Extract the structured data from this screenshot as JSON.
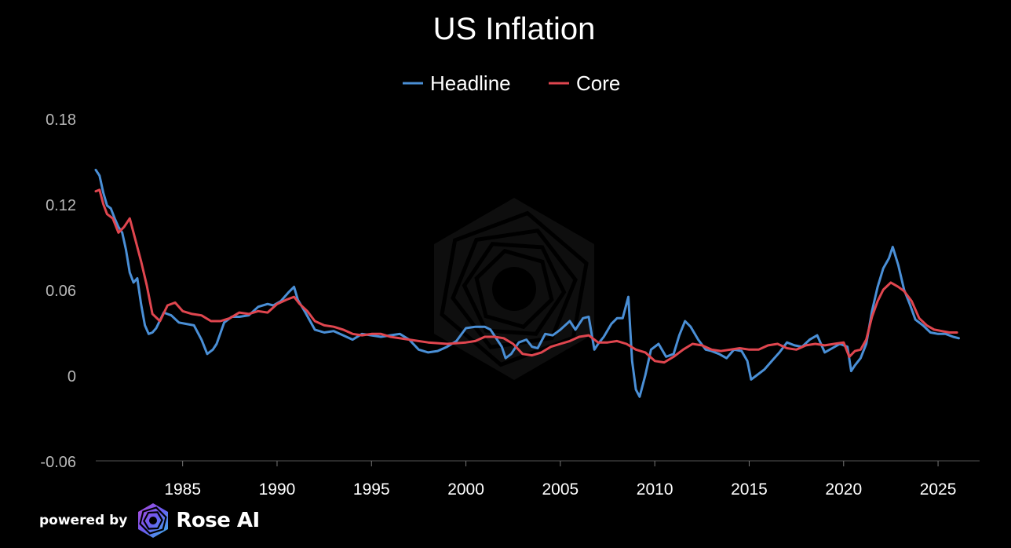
{
  "chart_data": {
    "type": "line",
    "title": "US Inflation",
    "xlabel": "",
    "ylabel": "",
    "legend_position": "top-center",
    "grid": false,
    "xlim": [
      1980.4,
      2027.2
    ],
    "ylim": [
      -0.06,
      0.18
    ],
    "y_ticks": [
      -0.06,
      0,
      0.06,
      0.12,
      0.18
    ],
    "y_tick_labels": [
      "-0.06",
      "0",
      "0.06",
      "0.12",
      "0.18"
    ],
    "x_ticks": [
      1985,
      1990,
      1995,
      2000,
      2005,
      2010,
      2015,
      2020,
      2025
    ],
    "x_tick_labels": [
      "1985",
      "1990",
      "1995",
      "2000",
      "2005",
      "2010",
      "2015",
      "2020",
      "2025"
    ],
    "series": [
      {
        "name": "Headline",
        "color": "#4a8fd6",
        "x": [
          1980.4,
          1980.6,
          1980.8,
          1981,
          1981.2,
          1981.4,
          1981.6,
          1981.8,
          1982,
          1982.2,
          1982.4,
          1982.6,
          1982.8,
          1983,
          1983.2,
          1983.4,
          1983.6,
          1984,
          1984.4,
          1984.8,
          1985.2,
          1985.6,
          1986,
          1986.3,
          1986.6,
          1986.8,
          1987.2,
          1987.6,
          1988,
          1988.5,
          1989,
          1989.5,
          1989.8,
          1990.2,
          1990.6,
          1990.9,
          1991.1,
          1991.5,
          1992,
          1992.5,
          1993,
          1993.5,
          1994,
          1994.5,
          1995,
          1995.5,
          1996,
          1996.5,
          1997,
          1997.5,
          1998,
          1998.5,
          1999,
          1999.5,
          2000,
          2000.5,
          2001,
          2001.3,
          2001.6,
          2001.9,
          2002.1,
          2002.4,
          2002.8,
          2003.2,
          2003.5,
          2003.8,
          2004.2,
          2004.6,
          2005,
          2005.5,
          2005.8,
          2006.2,
          2006.5,
          2006.8,
          2007,
          2007.3,
          2007.7,
          2008,
          2008.3,
          2008.6,
          2008.8,
          2009,
          2009.2,
          2009.5,
          2009.8,
          2010.2,
          2010.6,
          2011,
          2011.3,
          2011.6,
          2011.9,
          2012.3,
          2012.7,
          2013,
          2013.4,
          2013.8,
          2014.2,
          2014.6,
          2014.9,
          2015.1,
          2015.4,
          2015.8,
          2016.2,
          2016.6,
          2017,
          2017.4,
          2017.8,
          2018.2,
          2018.6,
          2019,
          2019.4,
          2019.8,
          2020.2,
          2020.4,
          2020.6,
          2020.9,
          2021.2,
          2021.5,
          2021.8,
          2022.1,
          2022.4,
          2022.6,
          2022.9,
          2023.2,
          2023.5,
          2023.8,
          2024.2,
          2024.6,
          2025,
          2025.4,
          2025.8,
          2026.1
        ],
        "values": [
          0.144,
          0.14,
          0.128,
          0.119,
          0.117,
          0.11,
          0.104,
          0.1,
          0.088,
          0.072,
          0.065,
          0.068,
          0.05,
          0.035,
          0.029,
          0.03,
          0.033,
          0.044,
          0.042,
          0.037,
          0.036,
          0.035,
          0.025,
          0.015,
          0.018,
          0.022,
          0.037,
          0.041,
          0.041,
          0.042,
          0.048,
          0.05,
          0.049,
          0.052,
          0.058,
          0.062,
          0.053,
          0.044,
          0.032,
          0.03,
          0.031,
          0.028,
          0.025,
          0.029,
          0.028,
          0.027,
          0.028,
          0.029,
          0.025,
          0.018,
          0.016,
          0.017,
          0.02,
          0.024,
          0.033,
          0.034,
          0.034,
          0.032,
          0.026,
          0.02,
          0.012,
          0.015,
          0.023,
          0.025,
          0.02,
          0.019,
          0.029,
          0.028,
          0.032,
          0.038,
          0.032,
          0.04,
          0.041,
          0.018,
          0.022,
          0.027,
          0.036,
          0.04,
          0.04,
          0.055,
          0.01,
          -0.01,
          -0.015,
          0.0,
          0.018,
          0.022,
          0.013,
          0.015,
          0.028,
          0.038,
          0.034,
          0.025,
          0.018,
          0.017,
          0.015,
          0.012,
          0.018,
          0.017,
          0.01,
          -0.003,
          0.0,
          0.004,
          0.01,
          0.016,
          0.023,
          0.021,
          0.02,
          0.025,
          0.028,
          0.016,
          0.019,
          0.022,
          0.02,
          0.003,
          0.007,
          0.012,
          0.022,
          0.045,
          0.062,
          0.075,
          0.082,
          0.09,
          0.077,
          0.06,
          0.05,
          0.039,
          0.035,
          0.03,
          0.029,
          0.029,
          0.027,
          0.026
        ]
      },
      {
        "name": "Core",
        "color": "#e0464f",
        "x": [
          1980.4,
          1980.6,
          1980.8,
          1981,
          1981.3,
          1981.6,
          1981.9,
          1982.2,
          1982.5,
          1982.8,
          1983.1,
          1983.4,
          1983.8,
          1984.2,
          1984.6,
          1985,
          1985.5,
          1986,
          1986.5,
          1987,
          1987.5,
          1988,
          1988.5,
          1989,
          1989.5,
          1990,
          1990.5,
          1990.9,
          1991.2,
          1991.6,
          1992,
          1992.5,
          1993,
          1993.5,
          1994,
          1994.5,
          1995,
          1995.5,
          1996,
          1997,
          1998,
          1999,
          2000,
          2000.5,
          2001,
          2001.5,
          2002,
          2002.5,
          2003,
          2003.5,
          2004,
          2004.5,
          2005,
          2005.5,
          2006,
          2006.5,
          2007,
          2007.5,
          2008,
          2008.5,
          2009,
          2009.5,
          2010,
          2010.5,
          2011,
          2011.5,
          2012,
          2012.5,
          2013,
          2013.5,
          2014,
          2014.5,
          2015,
          2015.5,
          2016,
          2016.5,
          2017,
          2017.5,
          2018,
          2018.5,
          2019,
          2019.5,
          2020,
          2020.3,
          2020.6,
          2020.9,
          2021.2,
          2021.5,
          2021.8,
          2022.1,
          2022.5,
          2022.9,
          2023.2,
          2023.6,
          2024,
          2024.4,
          2024.8,
          2025.2,
          2025.6,
          2026
        ],
        "values": [
          0.129,
          0.13,
          0.12,
          0.113,
          0.11,
          0.1,
          0.104,
          0.11,
          0.095,
          0.08,
          0.063,
          0.043,
          0.038,
          0.049,
          0.051,
          0.045,
          0.043,
          0.042,
          0.038,
          0.038,
          0.04,
          0.044,
          0.043,
          0.045,
          0.044,
          0.05,
          0.053,
          0.055,
          0.05,
          0.045,
          0.038,
          0.035,
          0.034,
          0.032,
          0.029,
          0.028,
          0.029,
          0.029,
          0.027,
          0.025,
          0.023,
          0.022,
          0.023,
          0.024,
          0.027,
          0.027,
          0.026,
          0.022,
          0.015,
          0.014,
          0.016,
          0.02,
          0.022,
          0.024,
          0.027,
          0.028,
          0.023,
          0.023,
          0.024,
          0.022,
          0.018,
          0.016,
          0.01,
          0.009,
          0.013,
          0.018,
          0.022,
          0.021,
          0.018,
          0.017,
          0.018,
          0.019,
          0.018,
          0.018,
          0.021,
          0.022,
          0.019,
          0.018,
          0.021,
          0.022,
          0.021,
          0.022,
          0.023,
          0.013,
          0.017,
          0.018,
          0.025,
          0.041,
          0.052,
          0.06,
          0.065,
          0.062,
          0.059,
          0.052,
          0.04,
          0.035,
          0.032,
          0.031,
          0.03,
          0.03
        ]
      }
    ]
  },
  "footer": {
    "powered_by": "powered by",
    "brand": "Rose AI"
  }
}
